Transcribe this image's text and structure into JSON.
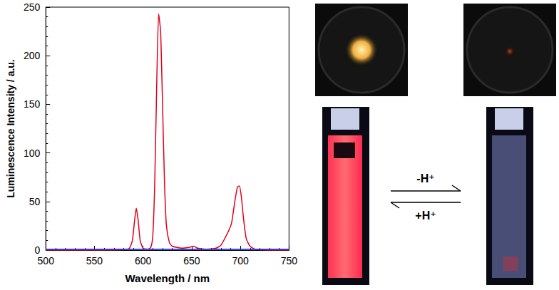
{
  "chart_data": {
    "type": "line",
    "x_label": "Wavelength / nm",
    "y_label": "Luminescence Intensity / a.u.",
    "xlim": [
      500,
      750
    ],
    "xticks": [
      500,
      550,
      600,
      650,
      700,
      750
    ],
    "ylim": [
      0,
      250
    ],
    "yticks": [
      0,
      50,
      100,
      150,
      200,
      250
    ],
    "grid": false,
    "series": [
      {
        "color": "#e3001b",
        "x": [
          500,
          550,
          580,
          586,
          589,
          591,
          593,
          595,
          597,
          600,
          605,
          608,
          610,
          612,
          614,
          616,
          618,
          620,
          622,
          624,
          627,
          630,
          640,
          648,
          652,
          656,
          665,
          675,
          680,
          684,
          688,
          691,
          694,
          697,
          699,
          701,
          703,
          706,
          710,
          715,
          730,
          750
        ],
        "values": [
          0,
          0,
          0.5,
          2,
          10,
          28,
          43,
          30,
          10,
          2,
          1,
          3,
          15,
          70,
          170,
          243,
          225,
          150,
          70,
          25,
          8,
          4,
          2,
          3,
          4,
          2,
          1,
          2,
          5,
          12,
          20,
          28,
          48,
          65,
          66,
          55,
          35,
          12,
          4,
          1,
          0,
          0
        ]
      },
      {
        "color": "#1f3cff",
        "x": [
          500,
          550,
          600,
          650,
          700,
          750
        ],
        "values": [
          1,
          1,
          1,
          1,
          1,
          1
        ]
      }
    ]
  },
  "scheme": {
    "forward": "-H⁺",
    "backward": "+H⁺"
  }
}
